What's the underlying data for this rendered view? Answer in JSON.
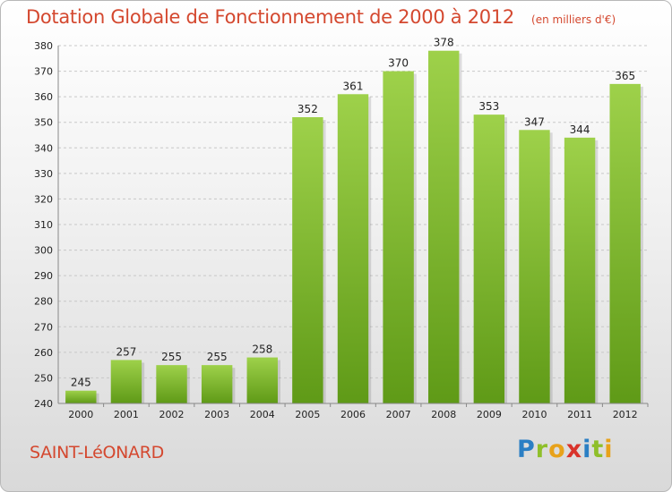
{
  "header": {
    "title": "Dotation Globale de Fonctionnement de 2000 à 2012",
    "subtitle": "(en milliers d'€)"
  },
  "footer": {
    "commune": "SAINT-LéONARD",
    "logo_letters": [
      {
        "ch": "P",
        "color": "#2b7fc4"
      },
      {
        "ch": "r",
        "color": "#8fbf2a"
      },
      {
        "ch": "o",
        "color": "#e8a21a"
      },
      {
        "ch": "x",
        "color": "#d9332b"
      },
      {
        "ch": "i",
        "color": "#2b7fc4"
      },
      {
        "ch": "t",
        "color": "#8fbf2a"
      },
      {
        "ch": "i",
        "color": "#e8a21a"
      }
    ]
  },
  "chart_data": {
    "type": "bar",
    "title": "Dotation Globale de Fonctionnement de 2000 à 2012",
    "subtitle": "(en milliers d'€)",
    "categories": [
      "2000",
      "2001",
      "2002",
      "2003",
      "2004",
      "2005",
      "2006",
      "2007",
      "2008",
      "2009",
      "2010",
      "2011",
      "2012"
    ],
    "values": [
      245,
      257,
      255,
      255,
      258,
      352,
      361,
      370,
      378,
      353,
      347,
      344,
      365
    ],
    "ylim": [
      240,
      380
    ],
    "yticks": [
      240,
      250,
      260,
      270,
      280,
      290,
      300,
      310,
      320,
      330,
      340,
      350,
      360,
      370,
      380
    ],
    "grid": true,
    "bar_color": "#7cb82f",
    "xlabel": "",
    "ylabel": ""
  }
}
